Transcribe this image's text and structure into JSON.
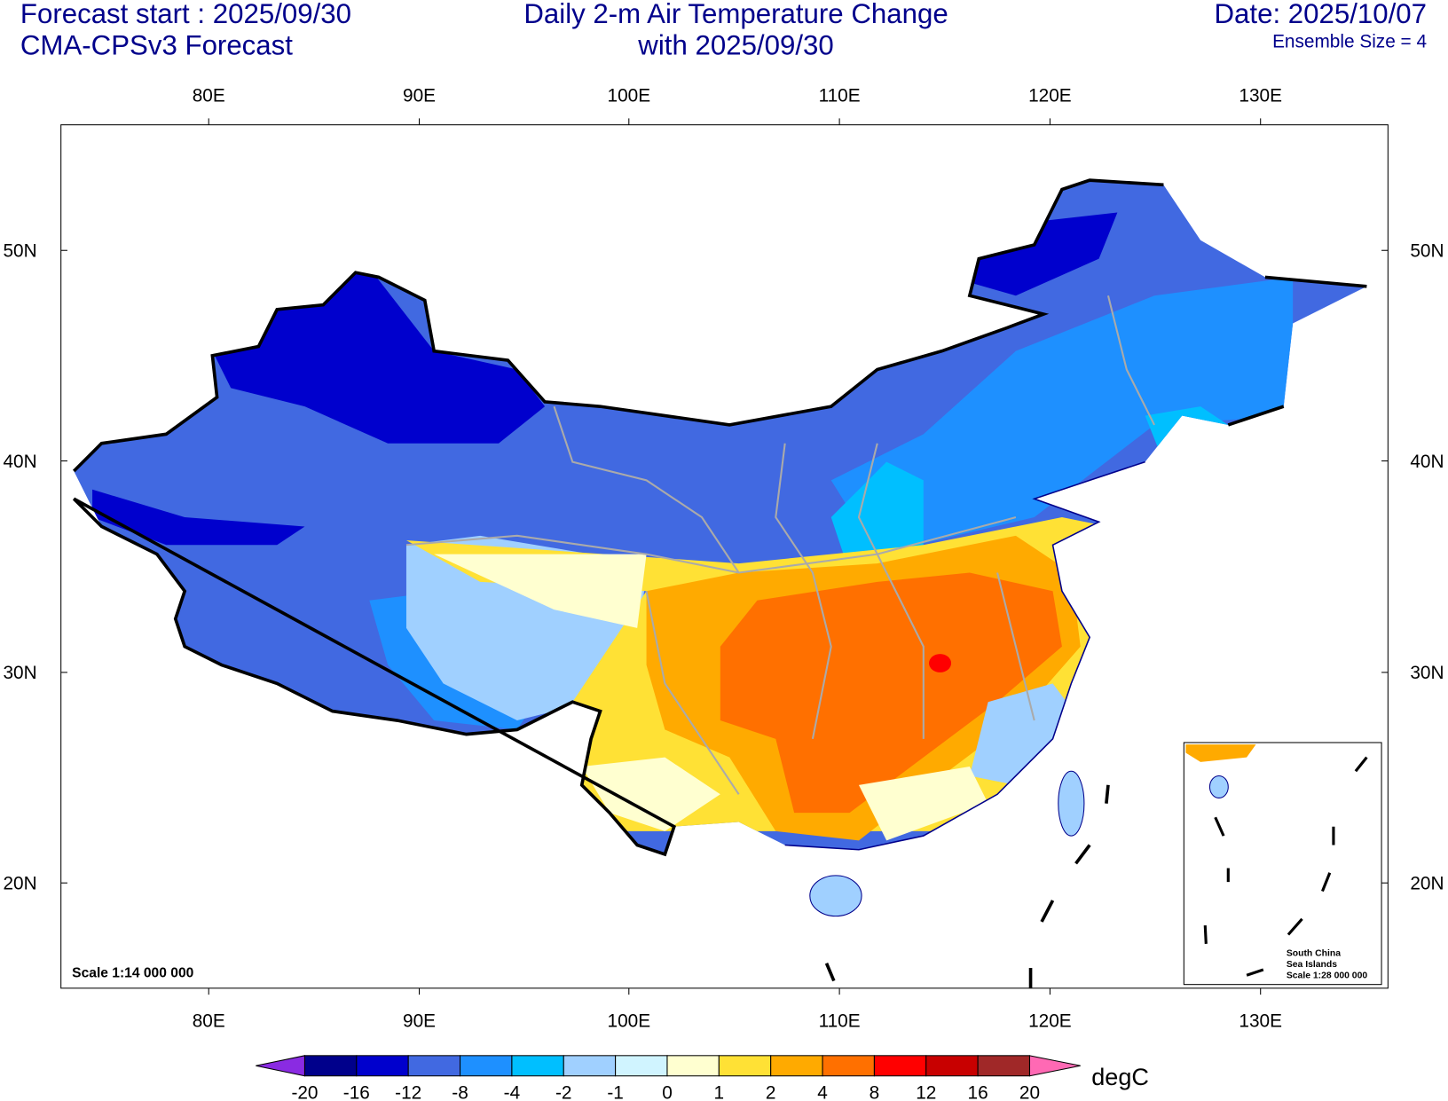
{
  "header": {
    "left_line1": "Forecast start : 2025/09/30",
    "left_line2": "CMA-CPSv3 Forecast",
    "center_line1": "Daily 2-m Air Temperature Change",
    "center_line2": "with 2025/09/30",
    "right_line1": "Date: 2025/10/07",
    "right_line2": "Ensemble Size = 4"
  },
  "axes": {
    "lon_labels": [
      "80E",
      "90E",
      "100E",
      "110E",
      "120E",
      "130E"
    ],
    "lat_labels": [
      "50N",
      "40N",
      "30N",
      "20N"
    ]
  },
  "map": {
    "scale_text": "Scale 1:14 000 000",
    "inset": {
      "line1": "South China",
      "line2": "Sea Islands",
      "line3": "Scale 1:28 000 000"
    }
  },
  "colorbar": {
    "unit": "degC",
    "levels": [
      "-20",
      "-16",
      "-12",
      "-8",
      "-4",
      "-2",
      "-1",
      "0",
      "1",
      "2",
      "4",
      "8",
      "12",
      "16",
      "20"
    ],
    "colors": [
      "#00008B",
      "#0000CD",
      "#4169E1",
      "#1E90FF",
      "#00BFFF",
      "#A0D0FF",
      "#D0F4FF",
      "#FFFFD0",
      "#FFE135",
      "#FFAA00",
      "#FF7000",
      "#FF0000",
      "#C80000",
      "#A02828"
    ],
    "low_color": "#8A2BE2",
    "high_color": "#FF69B4"
  }
}
